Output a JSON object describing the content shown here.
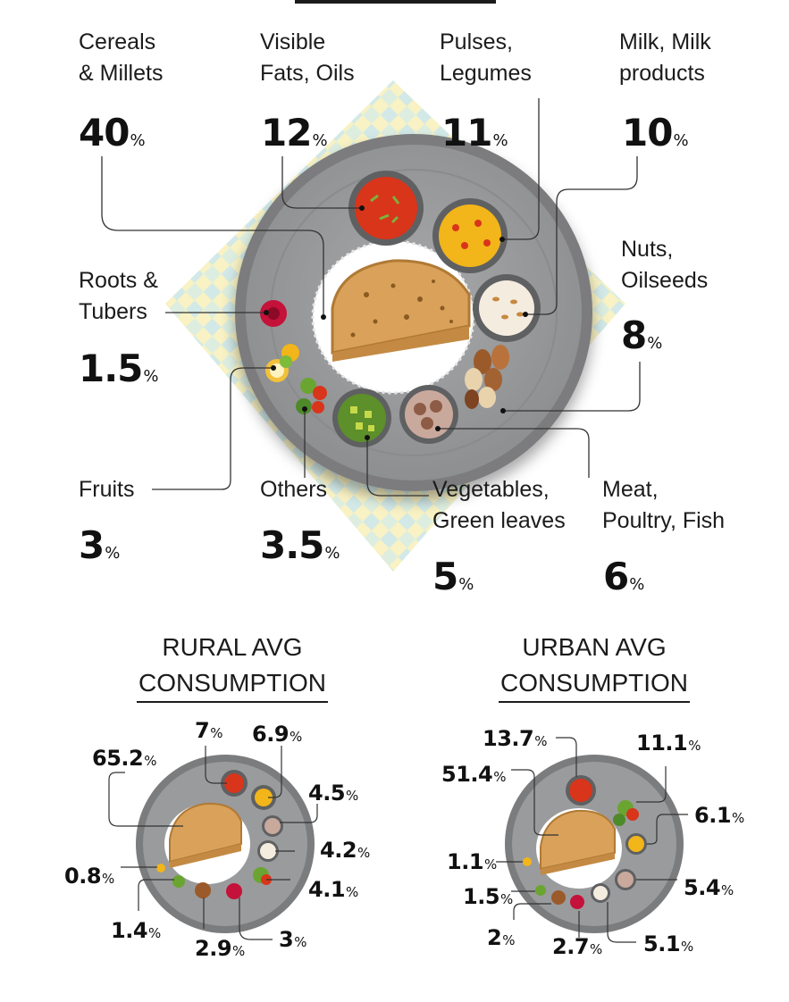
{
  "thali": {
    "items": [
      {
        "id": "cereals",
        "line1": "Cereals",
        "line2": "& Millets",
        "value": "40",
        "unit": "%"
      },
      {
        "id": "fats",
        "line1": "Visible",
        "line2": "Fats, Oils",
        "value": "12",
        "unit": "%"
      },
      {
        "id": "pulses",
        "line1": "Pulses,",
        "line2": "Legumes",
        "value": "11",
        "unit": "%"
      },
      {
        "id": "milk",
        "line1": "Milk, Milk",
        "line2": "products",
        "value": "10",
        "unit": "%"
      },
      {
        "id": "nuts",
        "line1": "Nuts,",
        "line2": "Oilseeds",
        "value": "8",
        "unit": "%"
      },
      {
        "id": "roots",
        "line1": "Roots &",
        "line2": "Tubers",
        "value": "1.5",
        "unit": "%"
      },
      {
        "id": "fruits",
        "line1": "Fruits",
        "line2": "",
        "value": "3",
        "unit": "%"
      },
      {
        "id": "others",
        "line1": "Others",
        "line2": "",
        "value": "3.5",
        "unit": "%"
      },
      {
        "id": "vegetables",
        "line1": "Vegetables,",
        "line2": "Green leaves",
        "value": "5",
        "unit": "%"
      },
      {
        "id": "meat",
        "line1": "Meat,",
        "line2": "Poultry, Fish",
        "value": "6",
        "unit": "%"
      }
    ]
  },
  "rural": {
    "heading_line1": "RURAL AVG",
    "heading_line2": "CONSUMPTION",
    "values": {
      "cereals": "65.2",
      "fats": "7",
      "pulses": "6.9",
      "milk": "4.5",
      "nuts": "4.2",
      "meat": "4.1",
      "roots": "3",
      "vegetables": "2.9",
      "others": "1.4",
      "fruits": "0.8"
    },
    "unit": "%"
  },
  "urban": {
    "heading_line1": "URBAN AVG",
    "heading_line2": "CONSUMPTION",
    "values": {
      "fats": "13.7",
      "others": "11.1",
      "cereals": "51.4",
      "pulses": "6.1",
      "fruits": "1.1",
      "meat": "5.4",
      "nuts": "1.5",
      "vegetables": "2",
      "roots": "2.7",
      "milk": "5.1"
    },
    "unit": "%"
  },
  "colors": {
    "plate_outer": "#8a8b8d",
    "plate_inner": "#9c9d9f",
    "rim": "#6f7072",
    "curry_red": "#d8351b",
    "dal_yellow": "#f2b51a",
    "milk_cream": "#f5ece0",
    "veg_green": "#6aa531",
    "meat_brown": "#a0786a",
    "beet": "#c4123a",
    "rice": "#ffffff",
    "roti": "#d9a15a",
    "deco_yellow": "#f6efb2",
    "deco_blue": "#bfe2e0"
  },
  "icons": [
    "thali-plate-illustration",
    "rice-icon",
    "roti-icon",
    "curry-bowl-icon",
    "dal-bowl-icon",
    "milk-bowl-icon",
    "nuts-icon",
    "meat-bowl-icon",
    "vegetable-bowl-icon",
    "beetroot-icon",
    "fruit-icon",
    "others-icon"
  ]
}
